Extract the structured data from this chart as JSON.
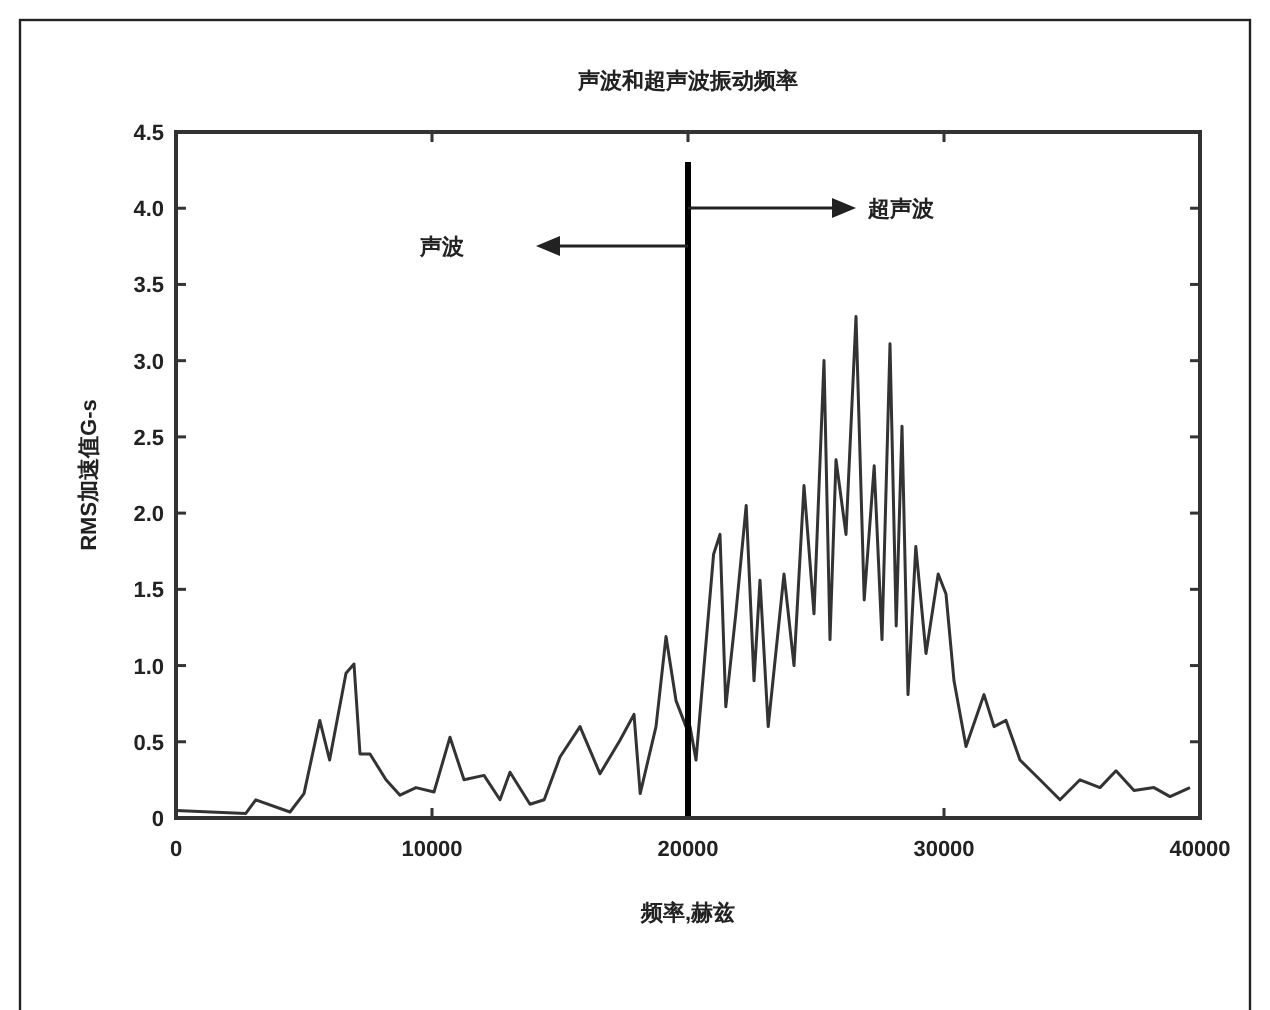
{
  "chart_data": {
    "type": "line",
    "title": "声波和超声波振动频率",
    "xlabel": "频率,赫兹",
    "ylabel": "RMS加速值G-s",
    "xlim": [
      0,
      40000
    ],
    "xticks": [
      0,
      10000,
      20000,
      30000,
      40000
    ],
    "ylim": [
      0,
      4.5
    ],
    "yticks": [
      0,
      0.5,
      {
        "value": 1,
        "label": "1.0"
      },
      1.5,
      {
        "value": 2,
        "label": "2.0"
      },
      2.5,
      {
        "value": 3,
        "label": "3.0"
      },
      3.5,
      {
        "value": 4,
        "label": "4.0"
      },
      4.5
    ],
    "grid": false,
    "series": [
      {
        "color": "#333333",
        "x": [
          0,
          2730,
          3120,
          4450,
          5000,
          5620,
          6000,
          6640,
          6950,
          7190,
          7580,
          8200,
          8750,
          9375,
          10080,
          10700,
          11250,
          12030,
          12660,
          13050,
          13830,
          14380,
          15000,
          15780,
          16560,
          17340,
          17890,
          18130,
          18750,
          19140,
          19530,
          19920,
          20080,
          20310,
          21000,
          21250,
          21480,
          21870,
          22270,
          22580,
          22810,
          23130,
          23750,
          24140,
          24530,
          24920,
          25310,
          25550,
          25780,
          26170,
          26560,
          26880,
          27270,
          27580,
          27890,
          28130,
          28360,
          28590,
          28900,
          29300,
          29770,
          30080,
          30390,
          30860,
          31560,
          31950,
          32420,
          32970,
          33750,
          34530,
          35310,
          36090,
          36720,
          37420,
          38200,
          38830,
          39610
        ],
        "values": [
          0.05,
          0.03,
          0.12,
          0.04,
          0.16,
          0.64,
          0.38,
          0.95,
          1.01,
          0.42,
          0.42,
          0.25,
          0.15,
          0.2,
          0.17,
          0.53,
          0.25,
          0.28,
          0.12,
          0.3,
          0.09,
          0.12,
          0.4,
          0.6,
          0.29,
          0.51,
          0.68,
          0.16,
          0.6,
          1.19,
          0.77,
          0.6,
          0.6,
          0.38,
          1.73,
          1.86,
          0.73,
          1.34,
          2.05,
          0.9,
          1.56,
          0.6,
          1.6,
          1.0,
          2.18,
          1.34,
          3.0,
          1.17,
          2.35,
          1.86,
          3.29,
          1.43,
          2.31,
          1.17,
          3.11,
          1.26,
          2.57,
          0.81,
          1.78,
          1.08,
          1.6,
          1.47,
          0.9,
          0.47,
          0.81,
          0.6,
          0.64,
          0.38,
          0.25,
          0.12,
          0.25,
          0.2,
          0.31,
          0.18,
          0.2,
          0.14,
          0.2
        ]
      }
    ],
    "ref_lines": [
      {
        "axis": "x",
        "value": 20000,
        "color": "#000000"
      }
    ],
    "annotations": [
      "超声波",
      "声波"
    ]
  }
}
